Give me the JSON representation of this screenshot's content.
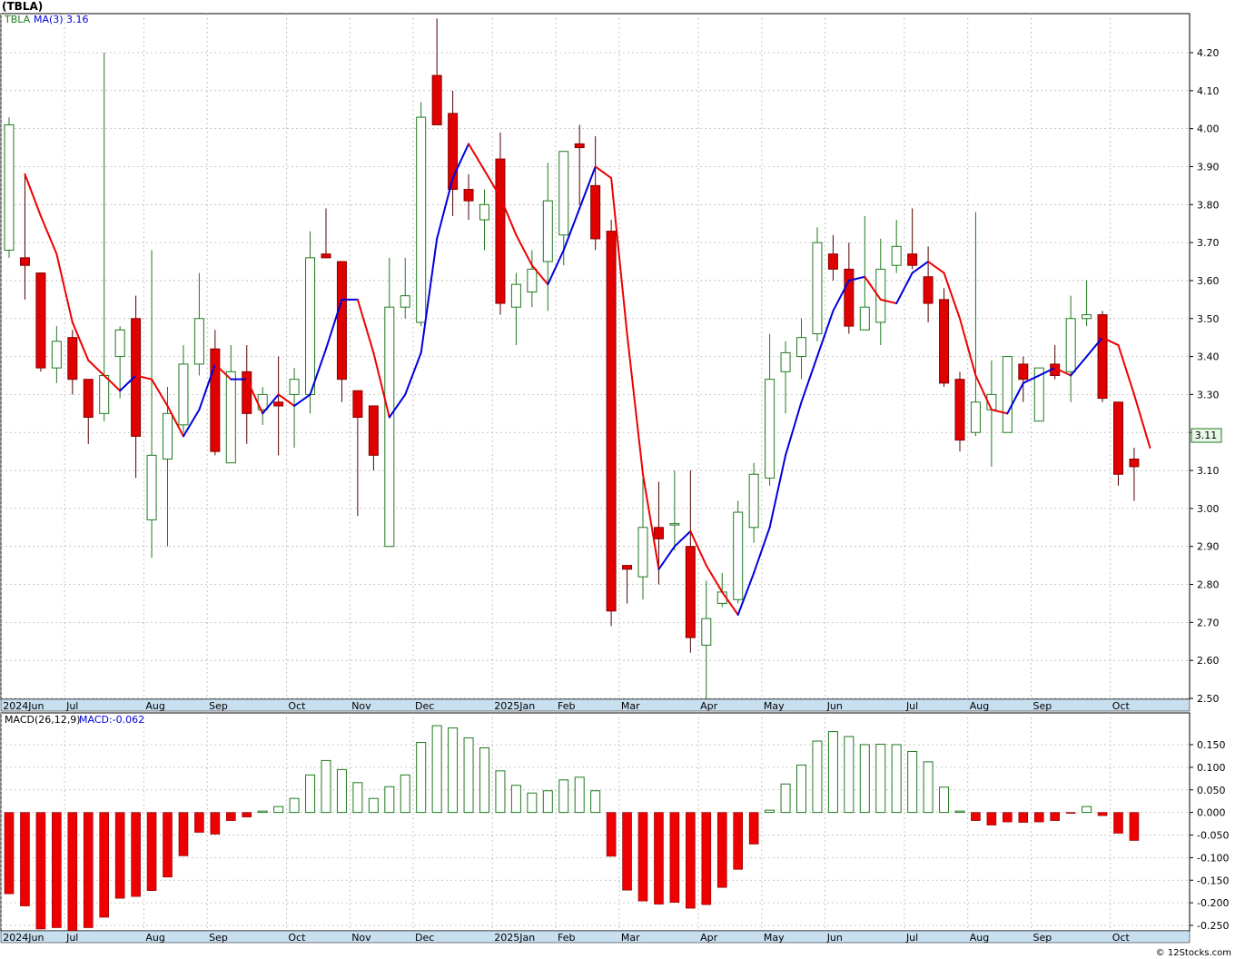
{
  "title": "(TBLA)",
  "legend": {
    "price_label": "TBLA",
    "ma_label": "MA(3)",
    "ma_value": "3.16",
    "macd_label": "MACD(26,12,9)",
    "macd_value": "MACD:-0.062"
  },
  "last_price_label": "3.11",
  "footer": "© 12Stocks.com",
  "colors": {
    "up_candle": "#1f7a1f",
    "down_candle": "#e00000",
    "ma_up": "#0000dd",
    "ma_down": "#ee0000",
    "macd_pos": "#1f7a1f",
    "macd_neg": "#ee0000",
    "grid": "#b8b8b8",
    "axis_bar": "#c8dff0"
  },
  "chart_data": [
    {
      "type": "candlestick",
      "name": "TBLA weekly",
      "interval": "weekly",
      "ylim": [
        2.48,
        4.33
      ],
      "yticks": [
        "2.50",
        "2.60",
        "2.70",
        "2.80",
        "2.90",
        "3.00",
        "3.10",
        "3.20",
        "3.30",
        "3.40",
        "3.50",
        "3.60",
        "3.70",
        "3.80",
        "3.90",
        "4.00",
        "4.10",
        "4.20"
      ],
      "grid": true,
      "months": [
        {
          "label": "2024Jun",
          "week": 0
        },
        {
          "label": "Jul",
          "week": 4
        },
        {
          "label": "Aug",
          "week": 9
        },
        {
          "label": "Sep",
          "week": 13
        },
        {
          "label": "Oct",
          "week": 18
        },
        {
          "label": "Nov",
          "week": 22
        },
        {
          "label": "Dec",
          "week": 26
        },
        {
          "label": "2025Jan",
          "week": 31
        },
        {
          "label": "Feb",
          "week": 35
        },
        {
          "label": "Mar",
          "week": 39
        },
        {
          "label": "Apr",
          "week": 44
        },
        {
          "label": "May",
          "week": 48
        },
        {
          "label": "Jun",
          "week": 52
        },
        {
          "label": "Jul",
          "week": 57
        },
        {
          "label": "Aug",
          "week": 61
        },
        {
          "label": "Sep",
          "week": 65
        },
        {
          "label": "Oct",
          "week": 70
        }
      ],
      "candles": [
        {
          "o": 3.68,
          "h": 4.03,
          "l": 3.66,
          "c": 4.01
        },
        {
          "o": 3.66,
          "h": 3.88,
          "l": 3.55,
          "c": 3.64
        },
        {
          "o": 3.62,
          "h": 3.62,
          "l": 3.36,
          "c": 3.37
        },
        {
          "o": 3.37,
          "h": 3.48,
          "l": 3.33,
          "c": 3.44
        },
        {
          "o": 3.45,
          "h": 3.47,
          "l": 3.3,
          "c": 3.34
        },
        {
          "o": 3.34,
          "h": 3.34,
          "l": 3.17,
          "c": 3.24
        },
        {
          "o": 3.25,
          "h": 4.2,
          "l": 3.23,
          "c": 3.35
        },
        {
          "o": 3.4,
          "h": 3.48,
          "l": 3.29,
          "c": 3.47
        },
        {
          "o": 3.5,
          "h": 3.56,
          "l": 3.08,
          "c": 3.19
        },
        {
          "o": 2.97,
          "h": 3.68,
          "l": 2.87,
          "c": 3.14
        },
        {
          "o": 3.13,
          "h": 3.32,
          "l": 2.9,
          "c": 3.25
        },
        {
          "o": 3.22,
          "h": 3.43,
          "l": 3.2,
          "c": 3.38
        },
        {
          "o": 3.38,
          "h": 3.62,
          "l": 3.35,
          "c": 3.5
        },
        {
          "o": 3.42,
          "h": 3.47,
          "l": 3.14,
          "c": 3.15
        },
        {
          "o": 3.12,
          "h": 3.43,
          "l": 3.12,
          "c": 3.36
        },
        {
          "o": 3.36,
          "h": 3.43,
          "l": 3.17,
          "c": 3.25
        },
        {
          "o": 3.26,
          "h": 3.32,
          "l": 3.22,
          "c": 3.3
        },
        {
          "o": 3.28,
          "h": 3.4,
          "l": 3.14,
          "c": 3.27
        },
        {
          "o": 3.3,
          "h": 3.37,
          "l": 3.16,
          "c": 3.34
        },
        {
          "o": 3.3,
          "h": 3.73,
          "l": 3.25,
          "c": 3.66
        },
        {
          "o": 3.67,
          "h": 3.79,
          "l": 3.66,
          "c": 3.66
        },
        {
          "o": 3.65,
          "h": 3.65,
          "l": 3.28,
          "c": 3.34
        },
        {
          "o": 3.31,
          "h": 3.31,
          "l": 2.98,
          "c": 3.24
        },
        {
          "o": 3.27,
          "h": 3.27,
          "l": 3.1,
          "c": 3.14
        },
        {
          "o": 2.9,
          "h": 3.66,
          "l": 2.9,
          "c": 3.53
        },
        {
          "o": 3.53,
          "h": 3.66,
          "l": 3.5,
          "c": 3.56
        },
        {
          "o": 3.49,
          "h": 4.07,
          "l": 3.48,
          "c": 4.03
        },
        {
          "o": 4.14,
          "h": 4.29,
          "l": 4.01,
          "c": 4.01
        },
        {
          "o": 4.04,
          "h": 4.1,
          "l": 3.77,
          "c": 3.84
        },
        {
          "o": 3.84,
          "h": 3.88,
          "l": 3.76,
          "c": 3.81
        },
        {
          "o": 3.76,
          "h": 3.84,
          "l": 3.68,
          "c": 3.8
        },
        {
          "o": 3.92,
          "h": 3.99,
          "l": 3.51,
          "c": 3.54
        },
        {
          "o": 3.53,
          "h": 3.62,
          "l": 3.43,
          "c": 3.59
        },
        {
          "o": 3.57,
          "h": 3.68,
          "l": 3.53,
          "c": 3.63
        },
        {
          "o": 3.65,
          "h": 3.91,
          "l": 3.52,
          "c": 3.81
        },
        {
          "o": 3.72,
          "h": 3.94,
          "l": 3.64,
          "c": 3.94
        },
        {
          "o": 3.96,
          "h": 4.01,
          "l": 3.8,
          "c": 3.95
        },
        {
          "o": 3.85,
          "h": 3.98,
          "l": 3.68,
          "c": 3.71
        },
        {
          "o": 3.73,
          "h": 3.76,
          "l": 2.69,
          "c": 2.73
        },
        {
          "o": 2.85,
          "h": 2.85,
          "l": 2.75,
          "c": 2.84
        },
        {
          "o": 2.82,
          "h": 3.08,
          "l": 2.76,
          "c": 2.95
        },
        {
          "o": 2.95,
          "h": 3.07,
          "l": 2.8,
          "c": 2.92
        },
        {
          "o": 2.96,
          "h": 3.1,
          "l": 2.89,
          "c": 2.96
        },
        {
          "o": 2.9,
          "h": 3.1,
          "l": 2.62,
          "c": 2.66
        },
        {
          "o": 2.64,
          "h": 2.81,
          "l": 2.49,
          "c": 2.71
        },
        {
          "o": 2.75,
          "h": 2.83,
          "l": 2.74,
          "c": 2.78
        },
        {
          "o": 2.76,
          "h": 3.02,
          "l": 2.75,
          "c": 2.99
        },
        {
          "o": 2.95,
          "h": 3.12,
          "l": 2.91,
          "c": 3.09
        },
        {
          "o": 3.08,
          "h": 3.46,
          "l": 3.06,
          "c": 3.34
        },
        {
          "o": 3.36,
          "h": 3.44,
          "l": 3.25,
          "c": 3.41
        },
        {
          "o": 3.4,
          "h": 3.5,
          "l": 3.34,
          "c": 3.45
        },
        {
          "o": 3.46,
          "h": 3.74,
          "l": 3.44,
          "c": 3.7
        },
        {
          "o": 3.67,
          "h": 3.72,
          "l": 3.6,
          "c": 3.63
        },
        {
          "o": 3.63,
          "h": 3.7,
          "l": 3.46,
          "c": 3.48
        },
        {
          "o": 3.47,
          "h": 3.77,
          "l": 3.47,
          "c": 3.53
        },
        {
          "o": 3.49,
          "h": 3.71,
          "l": 3.43,
          "c": 3.63
        },
        {
          "o": 3.64,
          "h": 3.76,
          "l": 3.62,
          "c": 3.69
        },
        {
          "o": 3.67,
          "h": 3.79,
          "l": 3.63,
          "c": 3.64
        },
        {
          "o": 3.61,
          "h": 3.69,
          "l": 3.49,
          "c": 3.54
        },
        {
          "o": 3.55,
          "h": 3.58,
          "l": 3.32,
          "c": 3.33
        },
        {
          "o": 3.34,
          "h": 3.36,
          "l": 3.15,
          "c": 3.18
        },
        {
          "o": 3.2,
          "h": 3.78,
          "l": 3.19,
          "c": 3.28
        },
        {
          "o": 3.26,
          "h": 3.39,
          "l": 3.11,
          "c": 3.3
        },
        {
          "o": 3.2,
          "h": 3.4,
          "l": 3.2,
          "c": 3.4
        },
        {
          "o": 3.38,
          "h": 3.4,
          "l": 3.28,
          "c": 3.34
        },
        {
          "o": 3.23,
          "h": 3.36,
          "l": 3.23,
          "c": 3.37
        },
        {
          "o": 3.38,
          "h": 3.43,
          "l": 3.34,
          "c": 3.35
        },
        {
          "o": 3.36,
          "h": 3.56,
          "l": 3.28,
          "c": 3.5
        },
        {
          "o": 3.5,
          "h": 3.6,
          "l": 3.48,
          "c": 3.51
        },
        {
          "o": 3.51,
          "h": 3.52,
          "l": 3.28,
          "c": 3.29
        },
        {
          "o": 3.28,
          "h": 3.28,
          "l": 3.06,
          "c": 3.09
        },
        {
          "o": 3.13,
          "h": 3.16,
          "l": 3.02,
          "c": 3.11
        }
      ],
      "ma3": [
        3.88,
        3.77,
        3.67,
        3.49,
        3.39,
        3.35,
        3.31,
        3.35,
        3.34,
        3.27,
        3.19,
        3.26,
        3.38,
        3.34,
        3.34,
        3.25,
        3.3,
        3.27,
        3.3,
        3.42,
        3.55,
        3.55,
        3.41,
        3.24,
        3.3,
        3.41,
        3.71,
        3.87,
        3.96,
        3.89,
        3.82,
        3.72,
        3.64,
        3.59,
        3.68,
        3.79,
        3.9,
        3.87,
        3.46,
        3.09,
        2.84,
        2.9,
        2.94,
        2.85,
        2.78,
        2.72,
        2.83,
        2.95,
        3.14,
        3.28,
        3.4,
        3.52,
        3.6,
        3.61,
        3.55,
        3.54,
        3.62,
        3.65,
        3.62,
        3.5,
        3.35,
        3.26,
        3.25,
        3.33,
        3.35,
        3.37,
        3.35,
        3.4,
        3.45,
        3.43,
        3.3,
        3.16
      ]
    },
    {
      "type": "bar",
      "name": "MACD(26,12,9)",
      "ylim": [
        -0.26,
        0.2
      ],
      "yticks": [
        "-0.250",
        "-0.200",
        "-0.150",
        "-0.100",
        "-0.050",
        "0.000",
        "0.050",
        "0.100",
        "0.150"
      ],
      "grid": true,
      "values": [
        -0.18,
        -0.207,
        -0.258,
        -0.255,
        -0.266,
        -0.255,
        -0.232,
        -0.19,
        -0.186,
        -0.173,
        -0.143,
        -0.096,
        -0.044,
        -0.048,
        -0.018,
        -0.01,
        0.003,
        0.013,
        0.031,
        0.083,
        0.115,
        0.095,
        0.066,
        0.031,
        0.057,
        0.083,
        0.155,
        0.192,
        0.187,
        0.165,
        0.143,
        0.092,
        0.06,
        0.043,
        0.048,
        0.072,
        0.078,
        0.048,
        -0.097,
        -0.172,
        -0.196,
        -0.203,
        -0.199,
        -0.212,
        -0.204,
        -0.166,
        -0.126,
        -0.07,
        0.005,
        0.063,
        0.105,
        0.158,
        0.179,
        0.168,
        0.15,
        0.151,
        0.15,
        0.135,
        0.112,
        0.056,
        0.003,
        -0.018,
        -0.028,
        -0.021,
        -0.022,
        -0.021,
        -0.018,
        -0.001,
        0.013,
        -0.007,
        -0.046,
        -0.062
      ]
    }
  ]
}
